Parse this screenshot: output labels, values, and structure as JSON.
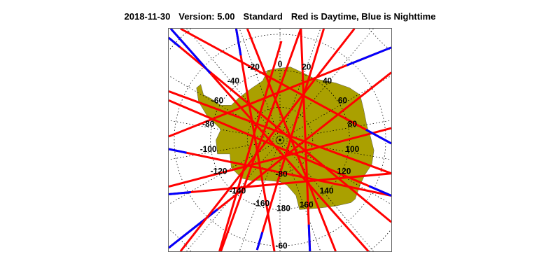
{
  "title": {
    "date": "2018-11-30",
    "version": "Version: 5.00",
    "product": "Standard",
    "legend": "Red is Daytime, Blue is Nighttime"
  },
  "colors": {
    "day": "#ff0000",
    "night": "#0000ff",
    "land": "#aaa000"
  },
  "map": {
    "projection": "south polar stereographic",
    "longitude_labels": [
      "0",
      "20",
      "40",
      "60",
      "80",
      "100",
      "120",
      "140",
      "160",
      "180",
      "-160",
      "-140",
      "-120",
      "-100",
      "-80",
      "-60",
      "-40",
      "-20"
    ],
    "latitude_labels": [
      "-80",
      "-60"
    ]
  }
}
